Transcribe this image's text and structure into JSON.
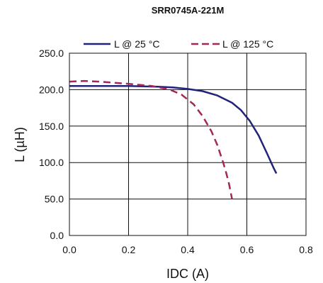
{
  "chart_data": {
    "type": "line",
    "title": "SRR0745A-221M",
    "xlabel": "IDC (A)",
    "ylabel": "L (µH)",
    "xlim": [
      0,
      0.8
    ],
    "ylim": [
      0,
      250
    ],
    "x_ticks": [
      0,
      0.2,
      0.4,
      0.6,
      0.8
    ],
    "x_tick_labels": [
      "0.0",
      "0.2",
      "0.4",
      "0.6",
      "0.8"
    ],
    "y_ticks": [
      0,
      50,
      100,
      150,
      200,
      250
    ],
    "y_tick_labels": [
      "0.0",
      "50.0",
      "100.0",
      "150.0",
      "200.0",
      "250.0"
    ],
    "grid": true,
    "legend_position": "top",
    "series": [
      {
        "name": "L @ 25 °C",
        "color": "#22237a",
        "style": "solid",
        "x": [
          0.0,
          0.1,
          0.2,
          0.3,
          0.35,
          0.4,
          0.45,
          0.5,
          0.55,
          0.58,
          0.61,
          0.64,
          0.67,
          0.69,
          0.7
        ],
        "y": [
          205,
          205,
          205,
          204,
          203,
          201,
          198,
          192,
          182,
          172,
          157,
          137,
          111,
          93,
          85
        ]
      },
      {
        "name": "L @ 125 °C",
        "color": "#a3285a",
        "style": "dashed",
        "x": [
          0.0,
          0.05,
          0.1,
          0.2,
          0.28,
          0.34,
          0.38,
          0.42,
          0.45,
          0.48,
          0.5,
          0.52,
          0.53,
          0.54,
          0.55
        ],
        "y": [
          211,
          212,
          211,
          208,
          205,
          200,
          193,
          180,
          164,
          143,
          124,
          100,
          86,
          70,
          50
        ]
      }
    ]
  }
}
